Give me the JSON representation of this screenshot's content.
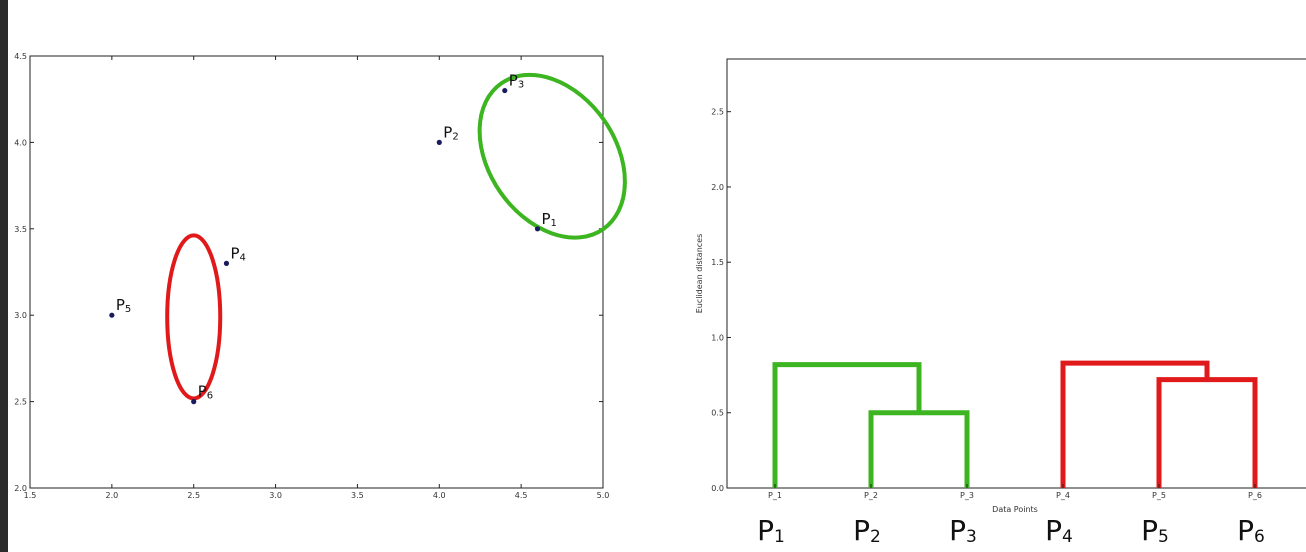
{
  "chart_data": [
    {
      "type": "scatter",
      "xlim": [
        1.5,
        5.0
      ],
      "ylim": [
        2.0,
        4.5
      ],
      "x_ticks": [
        "1.5",
        "2.0",
        "2.5",
        "3.0",
        "3.5",
        "4.0",
        "4.5",
        "5.0"
      ],
      "y_ticks": [
        "2.0",
        "2.5",
        "3.0",
        "3.5",
        "4.0",
        "4.5"
      ],
      "points": [
        {
          "id": "p1",
          "label": "P",
          "sub": "1",
          "x": 4.6,
          "y": 3.5
        },
        {
          "id": "p2",
          "label": "P",
          "sub": "2",
          "x": 4.0,
          "y": 4.0
        },
        {
          "id": "p3",
          "label": "P",
          "sub": "3",
          "x": 4.4,
          "y": 4.3
        },
        {
          "id": "p4",
          "label": "P",
          "sub": "4",
          "x": 2.7,
          "y": 3.3
        },
        {
          "id": "p5",
          "label": "P",
          "sub": "5",
          "x": 2.0,
          "y": 3.0
        },
        {
          "id": "p6",
          "label": "P",
          "sub": "6",
          "x": 2.5,
          "y": 2.5
        }
      ],
      "clusters": [
        {
          "name": "green",
          "color": "#3cb521",
          "cx": 4.69,
          "cy": 3.92,
          "rx_data": 0.58,
          "ry_data": 0.62,
          "rotate": -35
        },
        {
          "name": "red",
          "color": "#e01a1a",
          "cx": 2.5,
          "cy": 2.99,
          "rx_data": 0.6,
          "ry_data": 0.59,
          "rotate": 0
        }
      ]
    },
    {
      "type": "dendrogram",
      "xlabel": "Data Points",
      "ylabel": "Euclidean distances",
      "ylim": [
        0.0,
        2.85
      ],
      "y_ticks": [
        "0.0",
        "0.5",
        "1.0",
        "1.5",
        "2.0",
        "2.5"
      ],
      "leaves": [
        "P_1",
        "P_2",
        "P_3",
        "P_4",
        "P_5",
        "P_6"
      ],
      "big_labels": [
        {
          "label": "P",
          "sub": "1"
        },
        {
          "label": "P",
          "sub": "2"
        },
        {
          "label": "P",
          "sub": "3"
        },
        {
          "label": "P",
          "sub": "4"
        },
        {
          "label": "P",
          "sub": "5"
        },
        {
          "label": "P",
          "sub": "6"
        }
      ],
      "merges": [
        {
          "name": "p2-p3",
          "left_x": 2,
          "right_x": 3,
          "left_h": 0.0,
          "right_h": 0.0,
          "height": 0.5,
          "color": "#3cb521"
        },
        {
          "name": "p1-p23",
          "left_x": 1,
          "right_x": 2.5,
          "left_h": 0.0,
          "right_h": 0.5,
          "height": 0.82,
          "color": "#3cb521"
        },
        {
          "name": "p5-p6",
          "left_x": 5,
          "right_x": 6,
          "left_h": 0.0,
          "right_h": 0.0,
          "height": 0.72,
          "color": "#e01a1a"
        },
        {
          "name": "p4-p56",
          "left_x": 4,
          "right_x": 5.5,
          "left_h": 0.0,
          "right_h": 0.72,
          "height": 0.83,
          "color": "#e01a1a"
        }
      ]
    }
  ]
}
